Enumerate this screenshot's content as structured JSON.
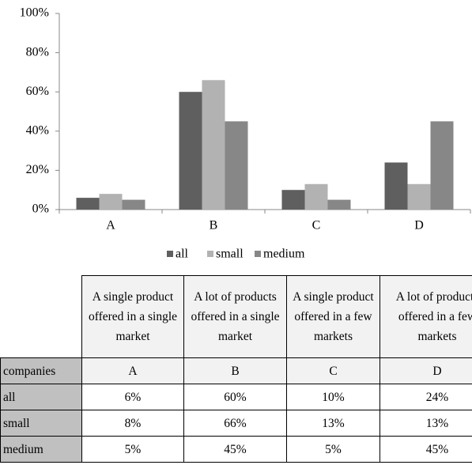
{
  "chart_data": {
    "type": "bar",
    "categories": [
      "A",
      "B",
      "C",
      "D"
    ],
    "series": [
      {
        "name": "all",
        "color": "#5f5f5f",
        "values": [
          6,
          60,
          10,
          24
        ]
      },
      {
        "name": "small",
        "color": "#b2b2b2",
        "values": [
          8,
          66,
          13,
          13
        ]
      },
      {
        "name": "medium",
        "color": "#878787",
        "values": [
          5,
          45,
          5,
          45
        ]
      }
    ],
    "ylim": [
      0,
      100
    ],
    "yticks": [
      {
        "value": 0,
        "label": "0%"
      },
      {
        "value": 20,
        "label": "20%"
      },
      {
        "value": 40,
        "label": "40%"
      },
      {
        "value": 60,
        "label": "60%"
      },
      {
        "value": 80,
        "label": "80%"
      },
      {
        "value": 100,
        "label": "100%"
      }
    ],
    "grid": false,
    "legend": "bottom"
  },
  "table": {
    "header": [
      "A single product offered in a single market",
      "A lot of products offered in a single market",
      "A single product offered in a few markets",
      "A lot of products offered in a few markets"
    ],
    "rows": [
      {
        "label": "companies",
        "cells": [
          "A",
          "B",
          "C",
          "D"
        ]
      },
      {
        "label": "all",
        "cells": [
          "6%",
          "60%",
          "10%",
          "24%"
        ]
      },
      {
        "label": "small",
        "cells": [
          "8%",
          "66%",
          "13%",
          "13%"
        ]
      },
      {
        "label": "medium",
        "cells": [
          "5%",
          "45%",
          "5%",
          "45%"
        ]
      }
    ]
  }
}
